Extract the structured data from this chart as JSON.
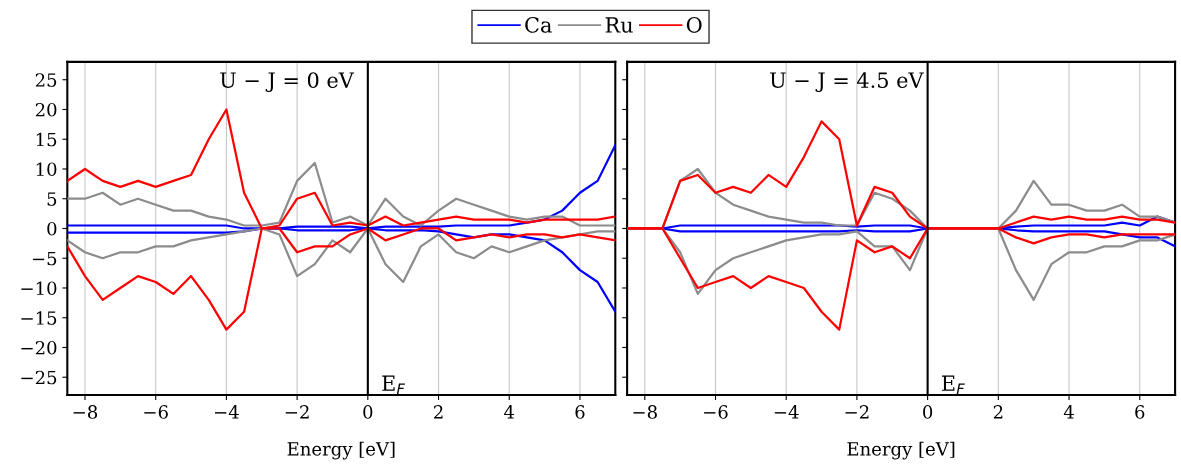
{
  "chart_data": [
    {
      "type": "line",
      "xlabel": "Energy [eV]",
      "xlim": [
        -8.5,
        7
      ],
      "xticks": [
        {
          "value": -8,
          "label": "−8"
        },
        {
          "value": -6,
          "label": "−6"
        },
        {
          "value": -4,
          "label": "−4"
        },
        {
          "value": -2,
          "label": "−2"
        },
        0,
        2,
        4,
        6
      ],
      "ylim": [
        -28,
        28
      ],
      "yticks": [
        {
          "value": -25,
          "label": "−25"
        },
        {
          "value": -20,
          "label": "−20"
        },
        {
          "value": -15,
          "label": "−15"
        },
        {
          "value": -10,
          "label": "−10"
        },
        {
          "value": -5,
          "label": "−5"
        },
        0,
        5,
        10,
        15,
        20,
        25
      ],
      "grid": "x",
      "legend": "top",
      "annotations": [
        "U − J = 0 eV"
      ],
      "ref_lines": [
        {
          "axis": "x",
          "value": 0,
          "label": "E$_{F}$",
          "color": "#000000"
        }
      ],
      "x": [
        -8.5,
        -8,
        -7.5,
        -7,
        -6.5,
        -6,
        -5.5,
        -5,
        -4.5,
        -4,
        -3.5,
        -3,
        -2.5,
        -2,
        -1.5,
        -1,
        -0.5,
        0,
        0.5,
        1,
        1.5,
        2,
        2.5,
        3,
        3.5,
        4,
        4.5,
        5,
        5.5,
        6,
        6.5,
        7
      ],
      "series": [
        {
          "name": "Ca",
          "color": "#0000ff",
          "values": [
            0.5,
            0.5,
            0.5,
            0.5,
            0.5,
            0.5,
            0.5,
            0.5,
            0.5,
            0.5,
            0,
            0,
            0,
            0.3,
            0.3,
            0.3,
            0.3,
            0,
            0.3,
            0.3,
            0.3,
            0.3,
            0.5,
            0.5,
            0.5,
            0.5,
            1,
            1.5,
            3,
            6,
            8,
            14
          ]
        },
        {
          "color": "#0000ff",
          "values": [
            -0.7,
            -0.7,
            -0.7,
            -0.7,
            -0.7,
            -0.7,
            -0.7,
            -0.7,
            -0.7,
            -0.7,
            -0.5,
            0,
            0,
            -0.3,
            -0.3,
            -0.3,
            -0.3,
            0,
            -0.3,
            -0.3,
            -0.3,
            -0.5,
            -1,
            -1.5,
            -1,
            -1,
            -1.5,
            -2,
            -4,
            -7,
            -9,
            -14
          ]
        },
        {
          "name": "Ru",
          "color": "#8c8c8c",
          "values": [
            5,
            5,
            6,
            4,
            5,
            4,
            3,
            3,
            2,
            1.5,
            0.5,
            0.5,
            1,
            8,
            11,
            1,
            2,
            0.5,
            5,
            2,
            0.5,
            3,
            5,
            4,
            3,
            2,
            1.5,
            2,
            2,
            0.5,
            0.5,
            0.5
          ]
        },
        {
          "color": "#8c8c8c",
          "values": [
            -2,
            -4,
            -5,
            -4,
            -4,
            -3,
            -3,
            -2,
            -1.5,
            -1,
            -0.5,
            0,
            -1,
            -8,
            -6,
            -2,
            -4,
            0,
            -6,
            -9,
            -3,
            -1,
            -4,
            -5,
            -3,
            -4,
            -3,
            -2,
            -1.5,
            -1,
            -0.5,
            -0.5
          ]
        },
        {
          "name": "O",
          "color": "#ff0000",
          "values": [
            8,
            10,
            8,
            7,
            8,
            7,
            8,
            9,
            15,
            20,
            6,
            0,
            0.5,
            5,
            6,
            0.5,
            1,
            0.5,
            2,
            0.5,
            1,
            1.5,
            2,
            1.5,
            1.5,
            1.5,
            1,
            1.5,
            1.5,
            1.5,
            1.5,
            2
          ]
        },
        {
          "color": "#ff0000",
          "values": [
            -3,
            -8,
            -12,
            -10,
            -8,
            -9,
            -11,
            -8,
            -12,
            -17,
            -14,
            0,
            0,
            -4,
            -3,
            -3,
            -1,
            0,
            -2,
            -1,
            0,
            0,
            -2,
            -1.5,
            -1,
            -1.5,
            -1,
            -1,
            -1.5,
            -1,
            -1.5,
            -2
          ]
        }
      ]
    },
    {
      "type": "line",
      "xlabel": "Energy [eV]",
      "xlim": [
        -8.5,
        7
      ],
      "xticks": [
        {
          "value": -8,
          "label": "−8"
        },
        {
          "value": -6,
          "label": "−6"
        },
        {
          "value": -4,
          "label": "−4"
        },
        {
          "value": -2,
          "label": "−2"
        },
        0,
        2,
        4,
        6
      ],
      "ylim": [
        -28,
        28
      ],
      "yticks": [
        {
          "value": -25,
          "label": null
        },
        {
          "value": -20,
          "label": null
        },
        {
          "value": -15,
          "label": null
        },
        {
          "value": -10,
          "label": null
        },
        {
          "value": -5,
          "label": null
        },
        {
          "value": 0,
          "label": null
        },
        {
          "value": 5,
          "label": null
        },
        {
          "value": 10,
          "label": null
        },
        {
          "value": 15,
          "label": null
        },
        {
          "value": 20,
          "label": null
        },
        {
          "value": 25,
          "label": null
        }
      ],
      "tick_labels": "x",
      "grid": "x",
      "annotations": [
        "U − J = 4.5 eV"
      ],
      "ref_lines": [
        {
          "axis": "x",
          "value": 0,
          "label": "E$_{F}$",
          "color": "#000000"
        }
      ],
      "x": [
        -8.5,
        -8,
        -7.5,
        -7,
        -6.5,
        -6,
        -5.5,
        -5,
        -4.5,
        -4,
        -3.5,
        -3,
        -2.5,
        -2,
        -1.5,
        -1,
        -0.5,
        0,
        0.5,
        1,
        1.5,
        2,
        2.5,
        3,
        3.5,
        4,
        4.5,
        5,
        5.5,
        6,
        6.5,
        7
      ],
      "series": [
        {
          "color": "#0000ff",
          "values": [
            0,
            0,
            0,
            0.5,
            0.5,
            0.5,
            0.5,
            0.5,
            0.5,
            0.5,
            0.5,
            0.5,
            0.5,
            0.3,
            0.5,
            0.5,
            0.5,
            0,
            0,
            0,
            0,
            0,
            0.3,
            0.5,
            0.5,
            0.5,
            0.5,
            0.5,
            1,
            0.5,
            2,
            1
          ]
        },
        {
          "color": "#0000ff",
          "values": [
            0,
            0,
            0,
            -0.5,
            -0.5,
            -0.5,
            -0.5,
            -0.5,
            -0.5,
            -0.5,
            -0.5,
            -0.5,
            -0.5,
            -0.3,
            -0.5,
            -0.5,
            -0.5,
            0,
            0,
            0,
            0,
            0,
            -0.3,
            -0.5,
            -0.5,
            -0.5,
            -0.5,
            -0.5,
            -1,
            -1.5,
            -1.5,
            -3
          ]
        },
        {
          "color": "#8c8c8c",
          "values": [
            0,
            0,
            0,
            8,
            10,
            6,
            4,
            3,
            2,
            1.5,
            1,
            1,
            0.5,
            0.5,
            6,
            5,
            3,
            0,
            0,
            0,
            0,
            0,
            3,
            8,
            4,
            4,
            3,
            3,
            4,
            2,
            2,
            1
          ]
        },
        {
          "color": "#8c8c8c",
          "values": [
            0,
            0,
            0,
            -4,
            -11,
            -7,
            -5,
            -4,
            -3,
            -2,
            -1.5,
            -1,
            -1,
            -0.5,
            -3,
            -3,
            -7,
            0,
            0,
            0,
            0,
            0,
            -7,
            -12,
            -6,
            -4,
            -4,
            -3,
            -3,
            -2,
            -2,
            -1
          ]
        },
        {
          "color": "#ff0000",
          "values": [
            0,
            0,
            0,
            8,
            9,
            6,
            7,
            6,
            9,
            7,
            12,
            18,
            15,
            0.5,
            7,
            6,
            2,
            0,
            0,
            0,
            0,
            0,
            1,
            2,
            1.5,
            2,
            1.5,
            1.5,
            2,
            1.5,
            1.5,
            1
          ]
        },
        {
          "color": "#ff0000",
          "values": [
            0,
            0,
            0,
            -5,
            -10,
            -9,
            -8,
            -10,
            -8,
            -9,
            -10,
            -14,
            -17,
            -2,
            -4,
            -3,
            -5,
            0,
            0,
            0,
            0,
            0,
            -1.5,
            -2.5,
            -1.5,
            -1,
            -1,
            -1.5,
            -1,
            -1,
            -1,
            -1
          ]
        }
      ]
    }
  ]
}
